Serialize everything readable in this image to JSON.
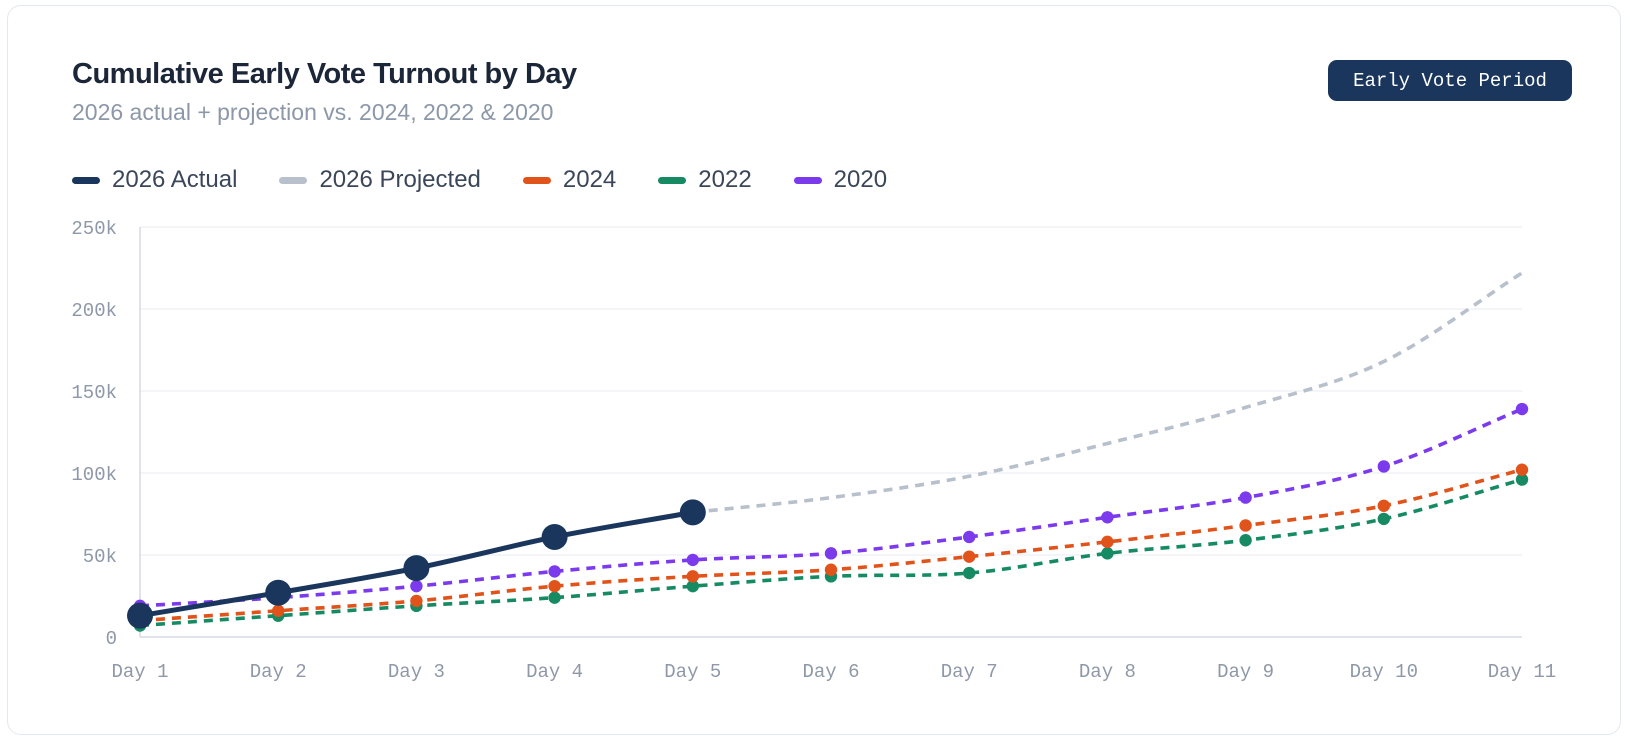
{
  "header": {
    "title": "Cumulative Early Vote Turnout by Day",
    "subtitle": "2026 actual + projection vs. 2024, 2022 & 2020",
    "badge": "Early Vote Period"
  },
  "legend": [
    {
      "label": "2026 Actual",
      "color": "#1a365d"
    },
    {
      "label": "2026 Projected",
      "color": "#b8c0cc"
    },
    {
      "label": "2024",
      "color": "#e0531b"
    },
    {
      "label": "2022",
      "color": "#168a63"
    },
    {
      "label": "2020",
      "color": "#7c3aed"
    }
  ],
  "chart_data": {
    "type": "line",
    "title": "Cumulative Early Vote Turnout by Day",
    "xlabel": "",
    "ylabel": "",
    "categories": [
      "Day 1",
      "Day 2",
      "Day 3",
      "Day 4",
      "Day 5",
      "Day 6",
      "Day 7",
      "Day 8",
      "Day 9",
      "Day 10",
      "Day 11"
    ],
    "ylim": [
      0,
      250000
    ],
    "yticks": [
      0,
      50000,
      100000,
      150000,
      200000,
      250000
    ],
    "ytick_labels": [
      "0",
      "50k",
      "100k",
      "150k",
      "200k",
      "250k"
    ],
    "grid": true,
    "series": [
      {
        "name": "2026 Actual",
        "color": "#1a365d",
        "style": "solid",
        "markers": true,
        "values": [
          13000,
          27000,
          42000,
          61000,
          76000,
          null,
          null,
          null,
          null,
          null,
          null
        ]
      },
      {
        "name": "2026 Projected",
        "color": "#b8c0cc",
        "style": "dashed",
        "markers": false,
        "values": [
          null,
          null,
          null,
          null,
          76000,
          85000,
          98000,
          118000,
          140000,
          168000,
          222000
        ]
      },
      {
        "name": "2024",
        "color": "#e0531b",
        "style": "dashed",
        "markers": true,
        "values": [
          10000,
          16000,
          22000,
          31000,
          37000,
          41000,
          49000,
          58000,
          68000,
          80000,
          102000
        ]
      },
      {
        "name": "2022",
        "color": "#168a63",
        "style": "dashed",
        "markers": true,
        "values": [
          7000,
          13000,
          19000,
          24000,
          31000,
          37000,
          39000,
          51000,
          59000,
          72000,
          96000
        ]
      },
      {
        "name": "2020",
        "color": "#7c3aed",
        "style": "dashed",
        "markers": true,
        "values": [
          19000,
          24000,
          31000,
          40000,
          47000,
          51000,
          61000,
          73000,
          85000,
          104000,
          139000
        ]
      }
    ]
  }
}
